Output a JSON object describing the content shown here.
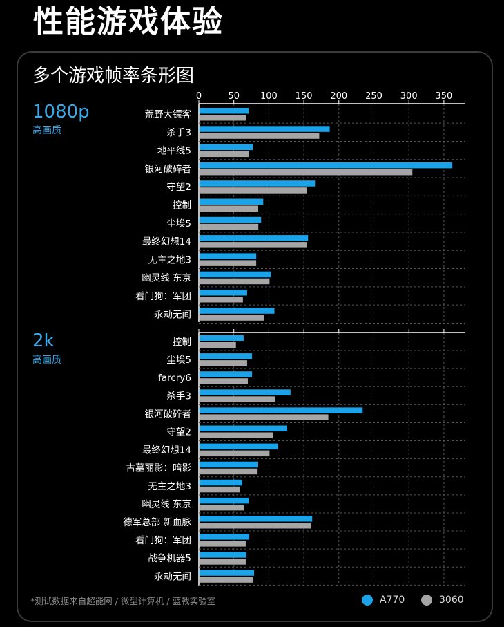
{
  "page_title": "性能游戏体验",
  "card_title": "多个游戏帧率条形图",
  "sections": [
    {
      "label": "1080p",
      "sub": "高画质"
    },
    {
      "label": "2k",
      "sub": "高画质"
    }
  ],
  "footnote": "*测试数据来自超能网 / 微型计算机 / 蓝戟实验室",
  "legend": [
    {
      "name": "A770",
      "color": "#1aa3e8"
    },
    {
      "name": "3060",
      "color": "#a6a6a6"
    }
  ],
  "chart_data": [
    {
      "type": "bar",
      "title": "1080p 高画质",
      "xlim": [
        0,
        380
      ],
      "ticks": [
        0,
        50,
        100,
        150,
        200,
        250,
        300,
        350
      ],
      "categories": [
        "荒野大镖客",
        "杀手3",
        "地平线5",
        "银河破碎者",
        "守望2",
        "控制",
        "尘埃5",
        "最终幻想14",
        "无主之地3",
        "幽灵线 东京",
        "看门狗：军团",
        "永劫无间"
      ],
      "series": [
        {
          "name": "A770",
          "values": [
            71,
            187,
            77,
            362,
            166,
            92,
            89,
            156,
            82,
            103,
            69,
            108
          ]
        },
        {
          "name": "3060",
          "values": [
            68,
            172,
            72,
            305,
            154,
            84,
            85,
            154,
            82,
            101,
            63,
            93
          ]
        }
      ]
    },
    {
      "type": "bar",
      "title": "2k 高画质",
      "xlim": [
        0,
        380
      ],
      "ticks": [
        0,
        50,
        100,
        150,
        200,
        250,
        300,
        350
      ],
      "categories": [
        "控制",
        "尘埃5",
        "farcry6",
        "杀手3",
        "银河破碎者",
        "守望2",
        "最终幻想14",
        "古墓丽影：暗影",
        "无主之地3",
        "幽灵线 东京",
        "德军总部 新血脉",
        "看门狗：军团",
        "战争机器5",
        "永劫无间"
      ],
      "series": [
        {
          "name": "A770",
          "values": [
            64,
            76,
            76,
            131,
            234,
            126,
            113,
            84,
            62,
            71,
            162,
            72,
            68,
            79
          ]
        },
        {
          "name": "3060",
          "values": [
            53,
            69,
            70,
            109,
            185,
            106,
            101,
            83,
            59,
            65,
            160,
            67,
            67,
            77
          ]
        }
      ]
    }
  ]
}
